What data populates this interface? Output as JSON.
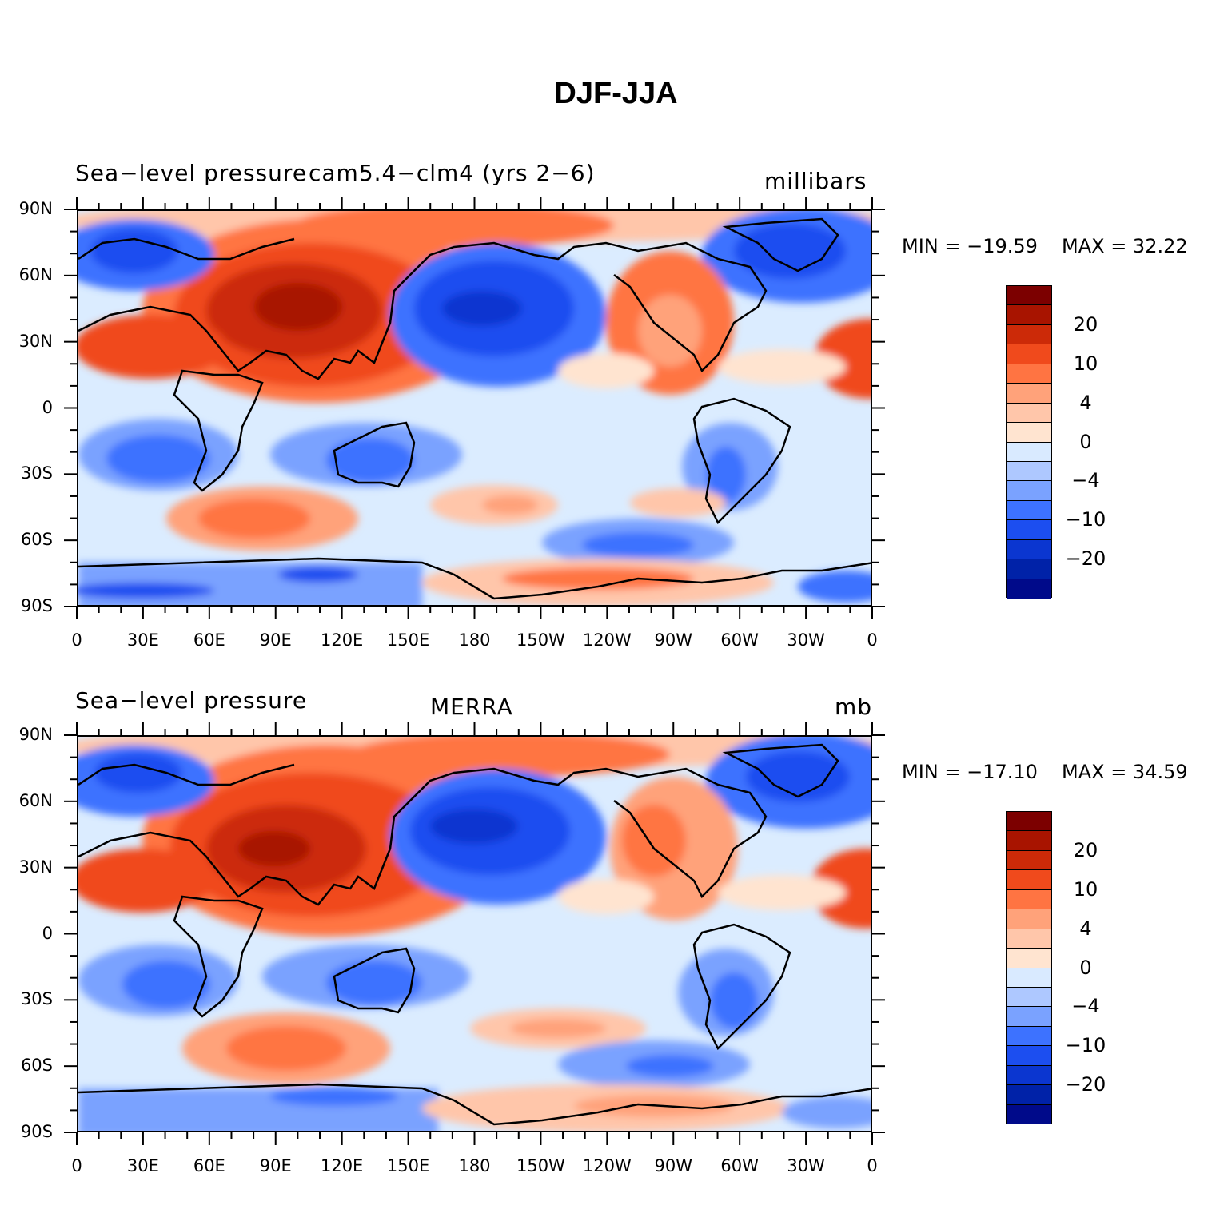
{
  "title": "DJF-JJA",
  "colors": {
    "levels": [
      "#000a8a",
      "#0022a8",
      "#0b36d0",
      "#1c4ef0",
      "#3d72ff",
      "#7aa2ff",
      "#aec8ff",
      "#d9eaff",
      "#ffe4d0",
      "#ffc6aa",
      "#ffa27a",
      "#ff7442",
      "#f04a1c",
      "#cc2a08",
      "#a81400",
      "#7c0000"
    ],
    "coast": "#000000"
  },
  "colorbar": {
    "labels": [
      "20",
      "10",
      "4",
      "0",
      "−4",
      "−10",
      "−20"
    ]
  },
  "axes": {
    "lat_labels": [
      "90N",
      "60N",
      "30N",
      "0",
      "30S",
      "60S",
      "90S"
    ],
    "lon_labels": [
      "0",
      "30E",
      "60E",
      "90E",
      "120E",
      "150E",
      "180",
      "150W",
      "120W",
      "90W",
      "60W",
      "30W",
      "0"
    ]
  },
  "panels": [
    {
      "left_label": "Sea−level pressure",
      "center_label": "cam5.4−clm4 (yrs 2−6)",
      "right_label": "millibars",
      "min_label": "MIN = −19.59",
      "max_label": "MAX =   32.22",
      "min": -19.59,
      "max": 32.22
    },
    {
      "left_label": "Sea−level pressure",
      "center_label": "MERRA",
      "right_label": "mb",
      "min_label": "MIN = −17.10",
      "max_label": "MAX =   34.59",
      "min": -17.1,
      "max": 34.59
    }
  ]
}
